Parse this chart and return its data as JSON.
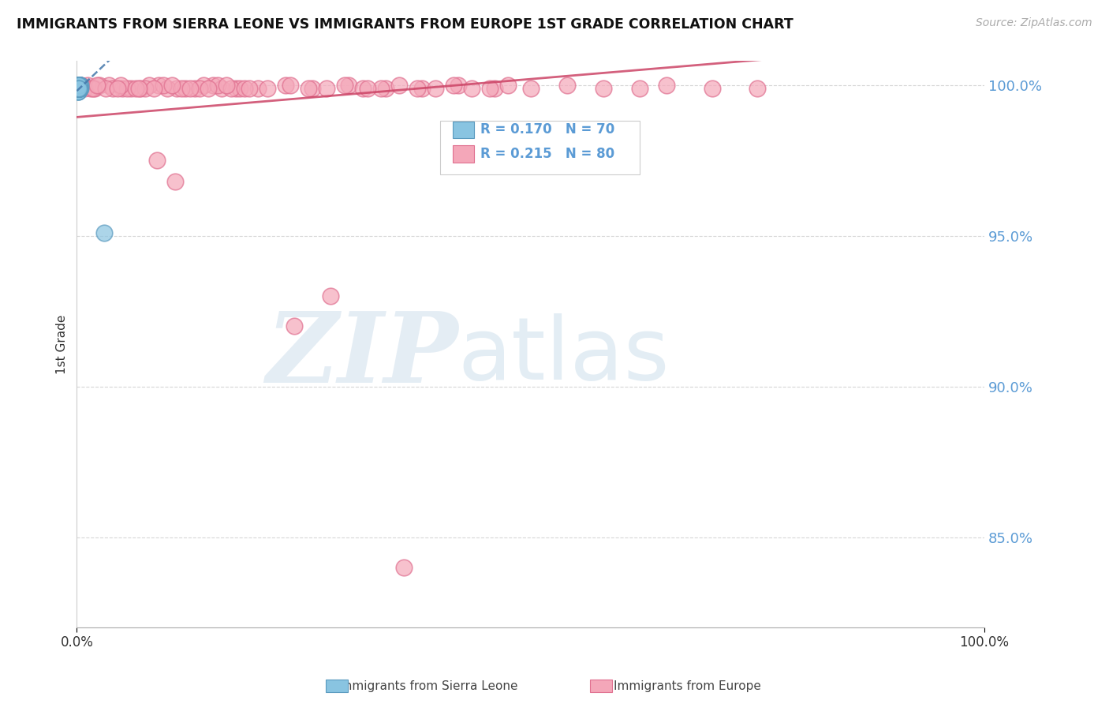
{
  "title": "IMMIGRANTS FROM SIERRA LEONE VS IMMIGRANTS FROM EUROPE 1ST GRADE CORRELATION CHART",
  "source": "Source: ZipAtlas.com",
  "ylabel": "1st Grade",
  "legend_blue_r": "R = 0.170",
  "legend_blue_n": "N = 70",
  "legend_pink_r": "R = 0.215",
  "legend_pink_n": "N = 80",
  "blue_color": "#89c4e1",
  "pink_color": "#f4a7b9",
  "blue_edge_color": "#5a9abf",
  "pink_edge_color": "#e07090",
  "blue_line_color": "#4477aa",
  "pink_line_color": "#cc4466",
  "grid_color": "#cccccc",
  "ytick_color": "#5b9bd5",
  "xlim": [
    0.0,
    1.0
  ],
  "ylim": [
    0.82,
    1.008
  ],
  "yticks": [
    0.85,
    0.9,
    0.95,
    1.0
  ],
  "ytick_labels": [
    "85.0%",
    "90.0%",
    "95.0%",
    "100.0%"
  ],
  "watermark_zip": "ZIP",
  "watermark_atlas": "atlas",
  "background_color": "#ffffff",
  "blue_x": [
    0.001,
    0.002,
    0.001,
    0.003,
    0.001,
    0.002,
    0.001,
    0.002,
    0.003,
    0.001,
    0.002,
    0.001,
    0.003,
    0.002,
    0.001,
    0.002,
    0.001,
    0.002,
    0.003,
    0.001,
    0.002,
    0.001,
    0.002,
    0.001,
    0.003,
    0.001,
    0.002,
    0.001,
    0.002,
    0.001,
    0.002,
    0.003,
    0.001,
    0.002,
    0.001,
    0.002,
    0.003,
    0.001,
    0.002,
    0.001,
    0.004,
    0.002,
    0.001,
    0.003,
    0.002,
    0.001,
    0.002,
    0.003,
    0.001,
    0.002,
    0.001,
    0.002,
    0.003,
    0.001,
    0.002,
    0.001,
    0.004,
    0.002,
    0.001,
    0.003,
    0.001,
    0.002,
    0.001,
    0.003,
    0.002,
    0.001,
    0.002,
    0.001,
    0.03,
    0.002
  ],
  "blue_y": [
    1.0,
    0.999,
    0.999,
    1.0,
    0.999,
    1.0,
    0.999,
    1.0,
    0.999,
    1.0,
    0.999,
    1.0,
    0.999,
    1.0,
    0.999,
    1.0,
    0.998,
    0.999,
    1.0,
    0.999,
    1.0,
    0.999,
    1.0,
    0.999,
    1.0,
    0.999,
    1.0,
    0.998,
    0.999,
    1.0,
    0.999,
    1.0,
    0.999,
    1.0,
    0.999,
    1.0,
    0.999,
    1.0,
    0.999,
    1.0,
    0.999,
    1.0,
    0.999,
    1.0,
    0.999,
    1.0,
    0.999,
    1.0,
    0.999,
    1.0,
    0.998,
    0.999,
    1.0,
    0.999,
    1.0,
    0.999,
    1.0,
    0.999,
    1.0,
    0.999,
    1.0,
    0.999,
    1.0,
    0.999,
    1.0,
    0.999,
    1.0,
    0.999,
    0.951,
    0.999
  ],
  "pink_x": [
    0.003,
    0.012,
    0.005,
    0.02,
    0.008,
    0.035,
    0.015,
    0.05,
    0.025,
    0.07,
    0.04,
    0.09,
    0.06,
    0.11,
    0.08,
    0.13,
    0.1,
    0.15,
    0.12,
    0.175,
    0.14,
    0.2,
    0.16,
    0.23,
    0.18,
    0.26,
    0.055,
    0.3,
    0.075,
    0.34,
    0.095,
    0.38,
    0.115,
    0.42,
    0.135,
    0.46,
    0.155,
    0.5,
    0.17,
    0.54,
    0.002,
    0.018,
    0.032,
    0.048,
    0.065,
    0.085,
    0.105,
    0.125,
    0.145,
    0.165,
    0.185,
    0.21,
    0.235,
    0.255,
    0.275,
    0.295,
    0.315,
    0.335,
    0.355,
    0.375,
    0.395,
    0.415,
    0.435,
    0.455,
    0.475,
    0.58,
    0.62,
    0.65,
    0.7,
    0.75,
    0.045,
    0.022,
    0.068,
    0.088,
    0.108,
    0.24,
    0.28,
    0.19,
    0.32,
    0.36
  ],
  "pink_y": [
    0.999,
    1.0,
    1.0,
    0.999,
    0.999,
    1.0,
    0.999,
    0.999,
    1.0,
    0.999,
    0.999,
    1.0,
    0.999,
    0.999,
    1.0,
    0.999,
    0.999,
    1.0,
    0.999,
    0.999,
    1.0,
    0.999,
    0.999,
    1.0,
    0.999,
    0.999,
    0.999,
    1.0,
    0.999,
    0.999,
    1.0,
    0.999,
    0.999,
    1.0,
    0.999,
    0.999,
    1.0,
    0.999,
    0.999,
    1.0,
    1.0,
    0.999,
    0.999,
    1.0,
    0.999,
    0.999,
    1.0,
    0.999,
    0.999,
    1.0,
    0.999,
    0.999,
    1.0,
    0.999,
    0.999,
    1.0,
    0.999,
    0.999,
    1.0,
    0.999,
    0.999,
    1.0,
    0.999,
    0.999,
    1.0,
    0.999,
    0.999,
    1.0,
    0.999,
    0.999,
    0.999,
    1.0,
    0.999,
    0.975,
    0.968,
    0.92,
    0.93,
    0.999,
    0.999,
    0.84
  ]
}
